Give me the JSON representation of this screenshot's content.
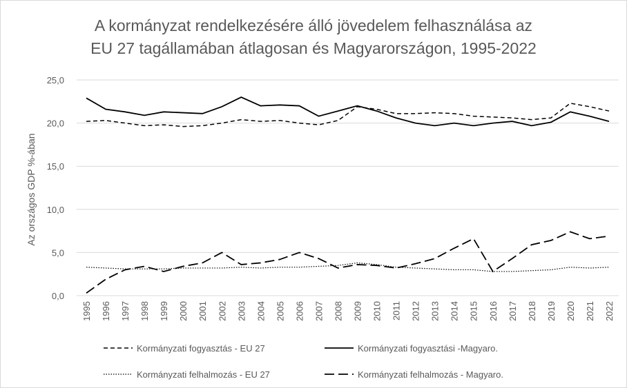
{
  "chart_data": {
    "type": "line",
    "title_lines": [
      "A kormányzat rendelkezésére álló jövedelem felhasználása az",
      "EU 27 tagállamában átlagosan és Magyarországon, 1995-2022"
    ],
    "y_label": "Az országos GDP %-ában",
    "categories": [
      "1995",
      "1996",
      "1997",
      "1998",
      "1999",
      "2000",
      "2001",
      "2002",
      "2003",
      "2004",
      "2005",
      "2006",
      "2007",
      "2008",
      "2009",
      "2010",
      "2011",
      "2012",
      "2013",
      "2014",
      "2015",
      "2016",
      "2017",
      "2018",
      "2019",
      "2020",
      "2021",
      "2022"
    ],
    "ylim": [
      0,
      25
    ],
    "yticks": [
      {
        "value": 0,
        "label": "0,0"
      },
      {
        "value": 5,
        "label": "5,0"
      },
      {
        "value": 10,
        "label": "10,0"
      },
      {
        "value": 15,
        "label": "15,0"
      },
      {
        "value": 20,
        "label": "20,0"
      },
      {
        "value": 25,
        "label": "25,0"
      }
    ],
    "grid": true,
    "series": [
      {
        "name": "Kormányzati fogyasztás - EU 27",
        "color": "#000000",
        "style": "dashed",
        "values": [
          20.2,
          20.3,
          20.0,
          19.7,
          19.8,
          19.6,
          19.7,
          20.0,
          20.4,
          20.2,
          20.3,
          20.0,
          19.8,
          20.3,
          21.9,
          21.6,
          21.1,
          21.1,
          21.2,
          21.1,
          20.8,
          20.7,
          20.6,
          20.4,
          20.6,
          22.3,
          21.9,
          21.4
        ]
      },
      {
        "name": "Kormányzati fogyasztási -Magyaro.",
        "color": "#000000",
        "style": "solid",
        "values": [
          22.9,
          21.6,
          21.3,
          20.9,
          21.3,
          21.2,
          21.1,
          21.9,
          23.0,
          22.0,
          22.1,
          22.0,
          20.8,
          21.4,
          22.0,
          21.4,
          20.6,
          20.0,
          19.7,
          20.0,
          19.7,
          20.0,
          20.2,
          19.7,
          20.1,
          21.3,
          20.8,
          20.2
        ]
      },
      {
        "name": "Kormányzati felhalmozás - EU 27",
        "color": "#000000",
        "style": "dotted",
        "values": [
          3.3,
          3.2,
          3.1,
          3.1,
          3.1,
          3.2,
          3.2,
          3.2,
          3.3,
          3.2,
          3.3,
          3.3,
          3.4,
          3.5,
          3.8,
          3.6,
          3.3,
          3.2,
          3.1,
          3.0,
          3.0,
          2.8,
          2.8,
          2.9,
          3.0,
          3.3,
          3.2,
          3.3
        ]
      },
      {
        "name": "Kormányzati felhalmozás - Magyaro.",
        "color": "#000000",
        "style": "longdash",
        "values": [
          0.3,
          1.9,
          3.0,
          3.4,
          2.8,
          3.4,
          3.8,
          5.0,
          3.6,
          3.8,
          4.2,
          5.0,
          4.3,
          3.2,
          3.6,
          3.5,
          3.2,
          3.7,
          4.3,
          5.5,
          6.6,
          2.8,
          4.3,
          5.9,
          6.4,
          7.4,
          6.6,
          6.9
        ]
      }
    ]
  }
}
